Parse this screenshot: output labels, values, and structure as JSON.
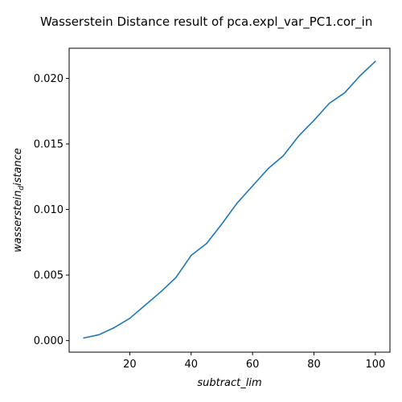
{
  "chart_data": {
    "type": "line",
    "title": "Wasserstein Distance result of pca.expl_var_PC1.cor_in",
    "xlabel": "subtract_lim",
    "ylabel_main": "wasserstein",
    "ylabel_sub": "d",
    "ylabel_rest": "istance",
    "xlim": [
      0.25,
      104.75
    ],
    "ylim": [
      -0.00088,
      0.0223
    ],
    "xticks": [
      20,
      40,
      60,
      80,
      100
    ],
    "xtick_labels": [
      "20",
      "40",
      "60",
      "80",
      "100"
    ],
    "yticks": [
      0.0,
      0.005,
      0.01,
      0.015,
      0.02
    ],
    "ytick_labels": [
      "0.000",
      "0.005",
      "0.010",
      "0.015",
      "0.020"
    ],
    "grid": false,
    "series": [
      {
        "color": "#1f77b4",
        "x": [
          5,
          10,
          15,
          20,
          25,
          30,
          35,
          40,
          45,
          50,
          55,
          60,
          65,
          70,
          75,
          80,
          85,
          90,
          95,
          100
        ],
        "y": [
          0.0002,
          0.00045,
          0.001,
          0.0017,
          0.0027,
          0.0037,
          0.0048,
          0.0065,
          0.0074,
          0.0089,
          0.0105,
          0.0118,
          0.0131,
          0.0141,
          0.0156,
          0.0168,
          0.0181,
          0.0189,
          0.0202,
          0.0213
        ]
      }
    ]
  }
}
